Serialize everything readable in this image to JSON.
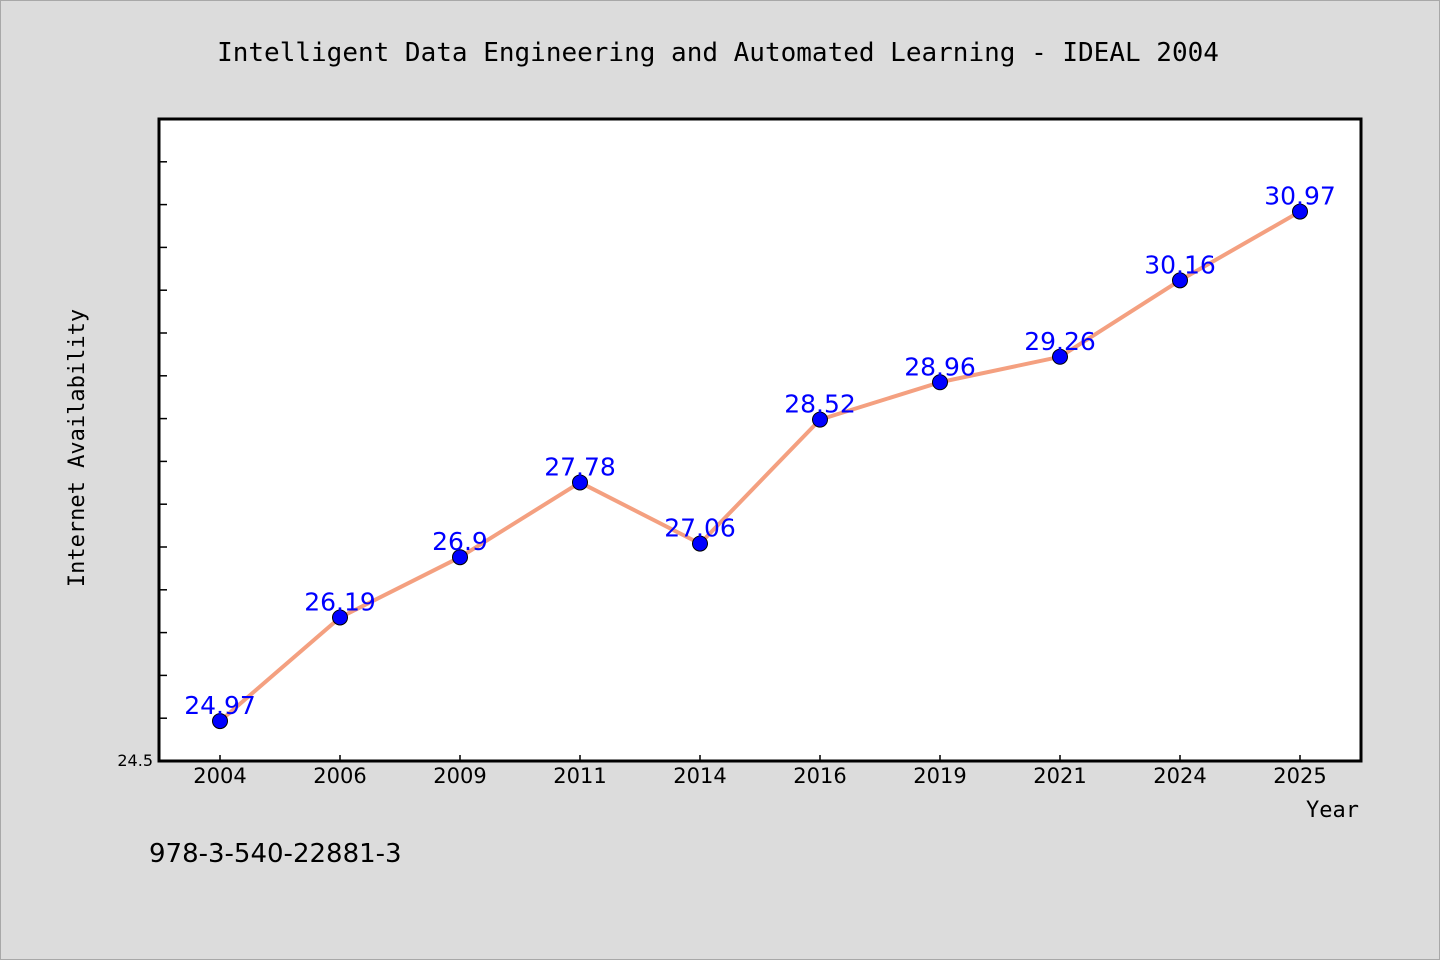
{
  "chart_data": {
    "type": "line",
    "title": "Intelligent Data Engineering and Automated Learning - IDEAL 2004",
    "xlabel": "Year",
    "ylabel": "Internet Availability",
    "categories": [
      "2004",
      "2006",
      "2009",
      "2011",
      "2014",
      "2016",
      "2019",
      "2021",
      "2024",
      "2025"
    ],
    "series": [
      {
        "values": [
          24.97,
          26.19,
          26.9,
          27.78,
          27.06,
          28.52,
          28.96,
          29.26,
          30.16,
          30.97
        ],
        "labels": [
          "24.97",
          "26.19",
          "26.9",
          "27.78",
          "27.06",
          "28.52",
          "28.96",
          "29.26",
          "30.16",
          "30.97"
        ],
        "line_color": "#f4a080",
        "marker_color": "#0000ff"
      }
    ],
    "ylim": [
      24.5,
      32.06
    ],
    "y_tick_labels": [
      "24.5"
    ],
    "grid": false,
    "legend": "none"
  },
  "footnote": "978-3-540-22881-3",
  "colors": {
    "background": "#dcdcdc",
    "plot_background": "#ffffff",
    "line": "#f4a080",
    "marker": "#0000ff",
    "data_label": "#0000ff"
  }
}
